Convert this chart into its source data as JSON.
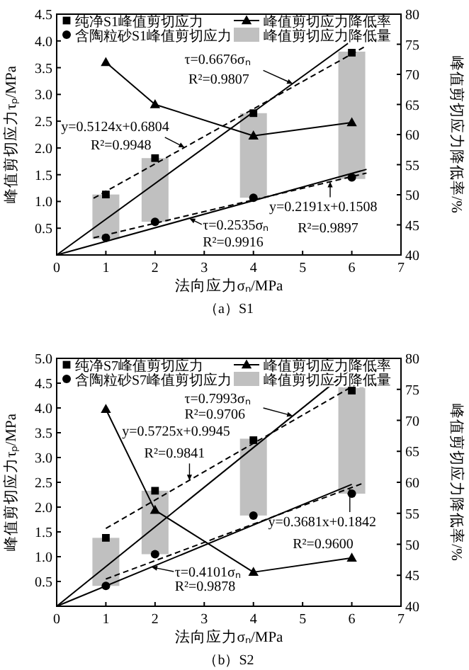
{
  "chart_data": [
    {
      "type": "scatter",
      "title": "（a）S1",
      "xlabel": "法向应力σₙ/MPa",
      "ylabel": "峰值剪切应力τₚ/MPa",
      "y2label": "峰值剪切应力降低率/%",
      "xlim": [
        0,
        7
      ],
      "xticks": [
        0,
        1,
        2,
        3,
        4,
        5,
        6,
        7
      ],
      "ylim": [
        0,
        4.5
      ],
      "yticks": [
        0.5,
        {
          "value": 1,
          "label": "1.0"
        },
        1.5,
        {
          "value": 2,
          "label": "2.0"
        },
        2.5,
        {
          "value": 3,
          "label": "3.0"
        },
        3.5,
        {
          "value": 4,
          "label": "4.0"
        },
        4.5
      ],
      "y2lim": [
        40,
        80
      ],
      "y2ticks": [
        40,
        45,
        50,
        55,
        60,
        65,
        70,
        75,
        80
      ],
      "legend": "top",
      "grid": false,
      "series": [
        {
          "name": "峰值剪切应力降低量",
          "type": "bar",
          "color": "#c0c0c0",
          "x": [
            1,
            2,
            4,
            6
          ],
          "base": [
            0.3,
            0.62,
            1.07,
            1.42
          ],
          "values": [
            0.83,
            1.19,
            1.58,
            2.38
          ]
        },
        {
          "type": "line",
          "line_style": "solid",
          "marker": "none",
          "color": "#000000",
          "x": [
            0,
            6.2
          ],
          "values": [
            0,
            4.14
          ]
        },
        {
          "type": "line",
          "line_style": "dashed",
          "marker": "none",
          "color": "#000000",
          "x": [
            0.75,
            6.3
          ],
          "values": [
            1.06,
            3.91
          ]
        },
        {
          "type": "line",
          "line_style": "solid",
          "marker": "none",
          "color": "#000000",
          "x": [
            0,
            6.3
          ],
          "values": [
            0,
            1.6
          ]
        },
        {
          "type": "line",
          "line_style": "dashed",
          "marker": "none",
          "color": "#000000",
          "x": [
            0.75,
            6.3
          ],
          "values": [
            0.32,
            1.53
          ]
        },
        {
          "name": "峰值剪切应力降低率",
          "type": "line",
          "axis": "y2",
          "line_style": "solid",
          "marker": "triangle",
          "color": "#000000",
          "x": [
            1,
            2,
            4,
            6
          ],
          "values": [
            72,
            65,
            59.8,
            62
          ]
        },
        {
          "name": "纯净S1峰值剪切应力",
          "marker": "square",
          "color": "#000000",
          "x": [
            1,
            2,
            4,
            6
          ],
          "values": [
            1.13,
            1.81,
            2.65,
            3.78
          ]
        },
        {
          "name": "含陶粒砂S1峰值剪切应力",
          "marker": "circle",
          "color": "#000000",
          "x": [
            1,
            2,
            4,
            6
          ],
          "values": [
            0.32,
            0.62,
            1.07,
            1.45
          ]
        }
      ],
      "annotations": [
        {
          "text": "τ=0.6676σₙ",
          "x": 4.8,
          "y": 3.2
        },
        "R²=0.9807",
        {
          "text": "y=0.5124x+0.6804",
          "x": 2.6,
          "y": 2.01
        },
        "R²=0.9948",
        {
          "text": "y=0.2191x+0.1508",
          "x": 5.56,
          "y": 1.37
        },
        "R²=0.9897",
        {
          "text": "τ=0.2535σₙ",
          "x": 2.7,
          "y": 0.68
        },
        "R²=0.9916"
      ]
    },
    {
      "type": "scatter",
      "title": "（b）S2",
      "xlabel": "法向应力σₙ/MPa",
      "ylabel": "峰值剪切应力τₚ/MPa",
      "y2label": "峰值剪切应力降低率/%",
      "xlim": [
        0,
        7
      ],
      "xticks": [
        0,
        1,
        2,
        3,
        4,
        5,
        6,
        7
      ],
      "ylim": [
        0,
        5
      ],
      "yticks": [
        0.5,
        {
          "value": 1,
          "label": "1.0"
        },
        1.5,
        {
          "value": 2,
          "label": "2.0"
        },
        2.5,
        {
          "value": 3,
          "label": "3.0"
        },
        3.5,
        {
          "value": 4,
          "label": "4.0"
        },
        4.5,
        {
          "value": 5,
          "label": "5.0"
        }
      ],
      "y2lim": [
        40,
        80
      ],
      "y2ticks": [
        40,
        45,
        50,
        55,
        60,
        65,
        70,
        75,
        80
      ],
      "legend": "top",
      "grid": false,
      "series": [
        {
          "name": "峰值剪切应力降低量",
          "type": "bar",
          "color": "#c0c0c0",
          "x": [
            1,
            2,
            4,
            6
          ],
          "base": [
            0.41,
            1.05,
            1.83,
            2.27
          ],
          "values": [
            0.97,
            1.28,
            1.55,
            2.15
          ]
        },
        {
          "type": "line",
          "line_style": "solid",
          "marker": "none",
          "color": "#000000",
          "x": [
            0,
            6.1
          ],
          "values": [
            0,
            4.88
          ]
        },
        {
          "type": "line",
          "line_style": "dashed",
          "marker": "none",
          "color": "#000000",
          "x": [
            1,
            6.3
          ],
          "values": [
            1.57,
            4.6
          ]
        },
        {
          "type": "line",
          "line_style": "solid",
          "marker": "none",
          "color": "#000000",
          "x": [
            0,
            6
          ],
          "values": [
            0,
            2.46
          ]
        },
        {
          "type": "line",
          "line_style": "dashed",
          "marker": "none",
          "color": "#000000",
          "x": [
            1,
            6.2
          ],
          "values": [
            0.55,
            2.47
          ]
        },
        {
          "name": "峰值剪切应力降低率",
          "type": "line",
          "axis": "y2",
          "line_style": "solid",
          "marker": "triangle",
          "color": "#000000",
          "x": [
            1,
            2,
            4,
            6
          ],
          "values": [
            71.8,
            55.5,
            45.5,
            47.8
          ]
        },
        {
          "name": "纯净S7峰值剪切应力",
          "marker": "square",
          "color": "#000000",
          "x": [
            1,
            2,
            4,
            6
          ],
          "values": [
            1.38,
            2.33,
            3.35,
            4.35
          ]
        },
        {
          "name": "含陶粒砂S7峰值剪切应力",
          "marker": "circle",
          "color": "#000000",
          "x": [
            1,
            2,
            4,
            6
          ],
          "values": [
            0.41,
            1.05,
            1.83,
            2.27
          ]
        }
      ],
      "annotations": [
        {
          "text": "τ=0.7993σₙ",
          "x": 4.8,
          "y": 3.84
        },
        "R²=0.9706",
        {
          "text": "y=0.5725x+0.9945",
          "x": 2.7,
          "y": 2.54
        },
        "R²=0.9841",
        {
          "text": "y=0.3681x+0.1842",
          "x": 5.96,
          "y": 2.38
        },
        "R²=0.9600",
        {
          "text": "τ=0.4101σₙ",
          "x": 1.93,
          "y": 0.79
        },
        "R²=0.9878"
      ]
    }
  ]
}
